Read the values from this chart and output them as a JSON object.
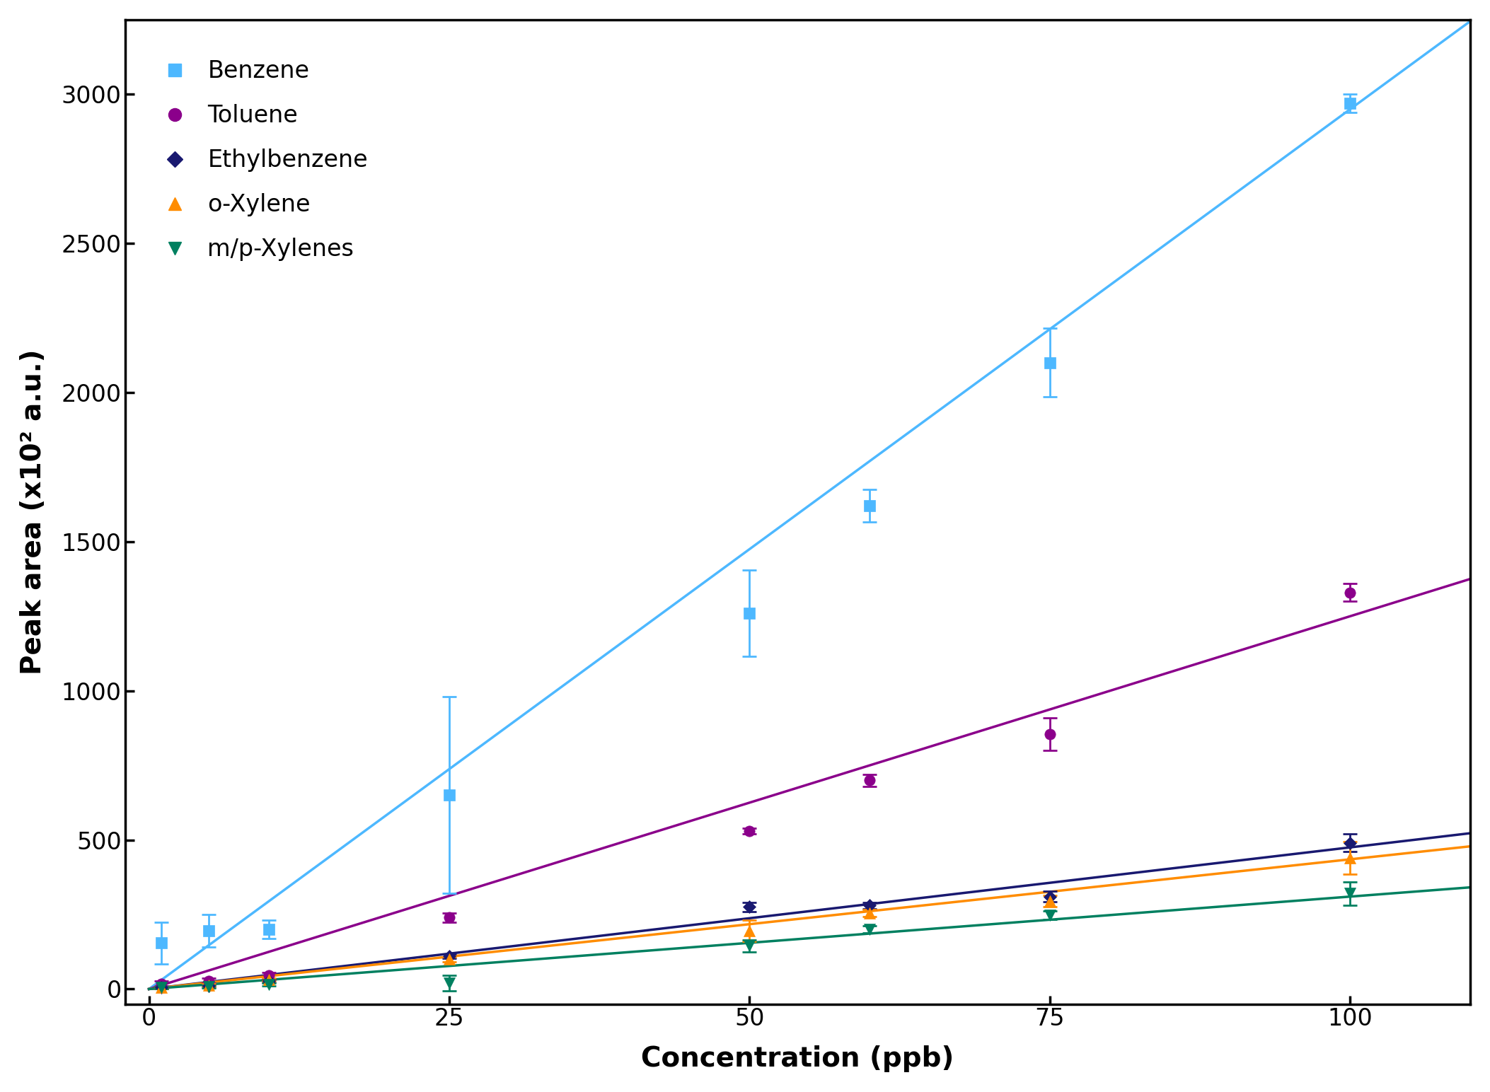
{
  "title": "",
  "xlabel": "Concentration (ppb)",
  "ylabel": "Peak area (x10² a.u.)",
  "xlim": [
    -2,
    110
  ],
  "ylim": [
    -50,
    3250
  ],
  "xticks": [
    0,
    25,
    50,
    75,
    100
  ],
  "yticks": [
    0,
    500,
    1000,
    1500,
    2000,
    2500,
    3000
  ],
  "series": {
    "Benzene": {
      "x": [
        1,
        5,
        10,
        25,
        50,
        60,
        75,
        100
      ],
      "y": [
        155,
        195,
        200,
        650,
        1260,
        1620,
        2100,
        2970
      ],
      "yerr": [
        70,
        55,
        30,
        330,
        145,
        55,
        115,
        30
      ],
      "color": "#4db8ff",
      "marker": "s",
      "markersize": 11,
      "fit_slope": 29.5
    },
    "Toluene": {
      "x": [
        1,
        5,
        10,
        25,
        50,
        60,
        75,
        100
      ],
      "y": [
        18,
        28,
        45,
        240,
        530,
        700,
        855,
        1330
      ],
      "yerr": [
        8,
        8,
        10,
        15,
        10,
        20,
        55,
        30
      ],
      "color": "#8b008b",
      "marker": "o",
      "markersize": 11,
      "fit_slope": 12.5
    },
    "Ethylbenzene": {
      "x": [
        1,
        5,
        10,
        25,
        50,
        60,
        75,
        100
      ],
      "y": [
        5,
        10,
        28,
        110,
        275,
        280,
        310,
        490
      ],
      "yerr": [
        4,
        4,
        5,
        8,
        15,
        10,
        18,
        30
      ],
      "color": "#191970",
      "marker": "D",
      "markersize": 9,
      "fit_slope": 4.75
    },
    "o-Xylene": {
      "x": [
        1,
        5,
        10,
        25,
        50,
        60,
        75,
        100
      ],
      "y": [
        5,
        12,
        32,
        100,
        195,
        255,
        295,
        440
      ],
      "yerr": [
        4,
        5,
        5,
        8,
        35,
        12,
        18,
        55
      ],
      "color": "#ff8c00",
      "marker": "^",
      "markersize": 11,
      "fit_slope": 4.35
    },
    "m/p-Xylenes": {
      "x": [
        1,
        5,
        10,
        25,
        50,
        60,
        75,
        100
      ],
      "y": [
        5,
        8,
        15,
        20,
        145,
        200,
        248,
        320
      ],
      "yerr": [
        4,
        4,
        5,
        25,
        20,
        12,
        15,
        40
      ],
      "color": "#008060",
      "marker": "v",
      "markersize": 11,
      "fit_slope": 3.1
    }
  },
  "legend_order": [
    "Benzene",
    "Toluene",
    "Ethylbenzene",
    "o-Xylene",
    "m/p-Xylenes"
  ],
  "legend_loc": "upper left",
  "figsize_inches": [
    21.06,
    15.44
  ],
  "dpi": 100,
  "axis_linewidth": 2.5,
  "tick_labelsize": 24,
  "label_fontsize": 28,
  "legend_fontsize": 24
}
